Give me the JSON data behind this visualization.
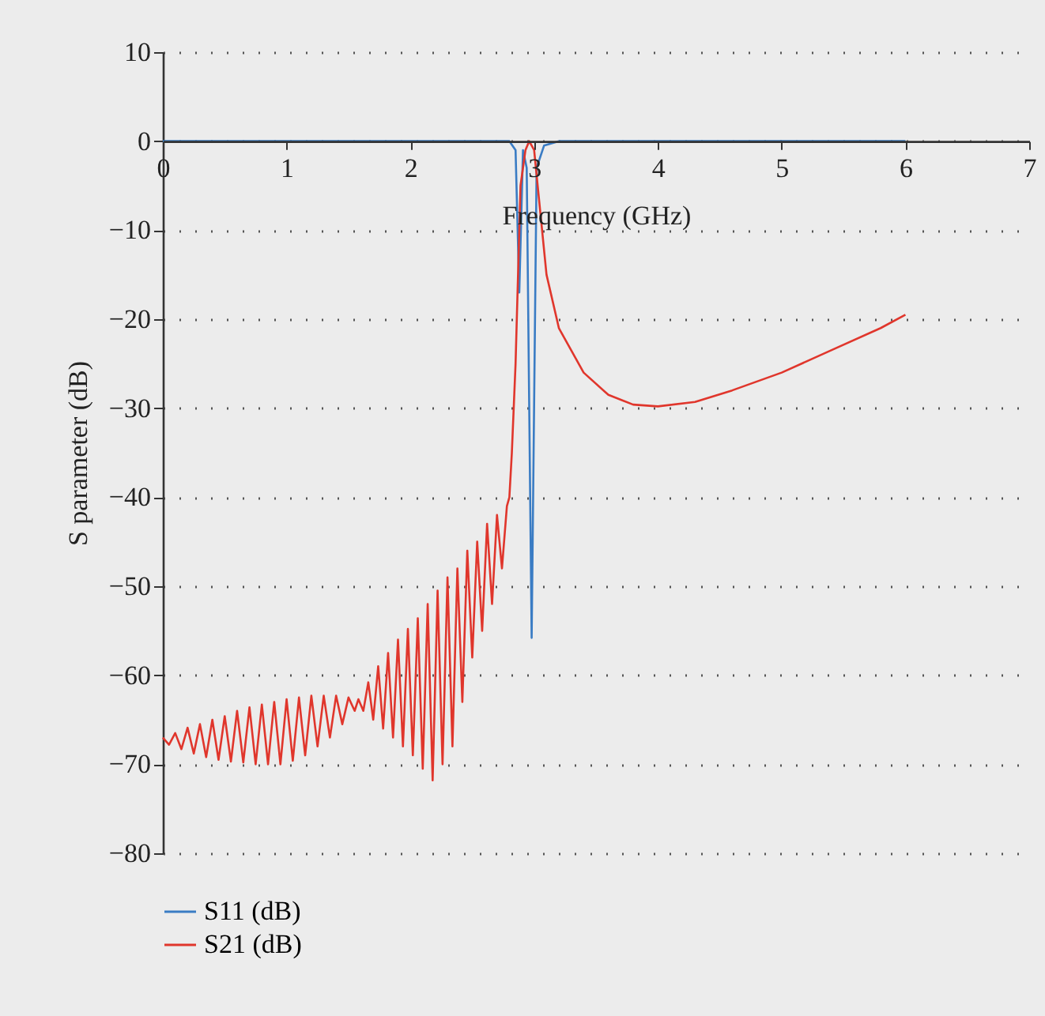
{
  "chart_data": {
    "type": "line",
    "xlabel": "Frequency (GHz)",
    "ylabel": "S parameter (dB)",
    "xlim": [
      0,
      7
    ],
    "xticks": [
      0,
      1,
      2,
      3,
      4,
      5,
      6,
      7
    ],
    "ylim": [
      -80,
      10
    ],
    "yticks": [
      -80,
      -70,
      -60,
      -50,
      -40,
      -30,
      -20,
      -10,
      0,
      10
    ],
    "grid": "y",
    "legend": "bottom",
    "line_style": "solid",
    "marker": "none",
    "series": [
      {
        "name": "S11 (dB)",
        "color": "#3a7cc4",
        "x": [
          0,
          2.8,
          2.85,
          2.88,
          2.91,
          2.94,
          2.98,
          3.02,
          3.08,
          3.2,
          6
        ],
        "values": [
          0,
          0,
          -1,
          -17,
          -1,
          -3,
          -55.8,
          -3,
          -0.5,
          0,
          0
        ]
      },
      {
        "name": "S21 (dB)",
        "color": "#e0362c",
        "x": [
          0,
          0.05,
          0.1,
          0.15,
          0.2,
          0.25,
          0.3,
          0.35,
          0.4,
          0.45,
          0.5,
          0.55,
          0.6,
          0.65,
          0.7,
          0.75,
          0.8,
          0.85,
          0.9,
          0.95,
          1.0,
          1.05,
          1.1,
          1.15,
          1.2,
          1.25,
          1.3,
          1.35,
          1.4,
          1.45,
          1.5,
          1.55,
          1.58,
          1.62,
          1.66,
          1.7,
          1.74,
          1.78,
          1.82,
          1.86,
          1.9,
          1.94,
          1.98,
          2.02,
          2.06,
          2.1,
          2.14,
          2.18,
          2.22,
          2.26,
          2.3,
          2.34,
          2.38,
          2.42,
          2.46,
          2.5,
          2.54,
          2.58,
          2.62,
          2.66,
          2.7,
          2.74,
          2.78,
          2.8,
          2.82,
          2.85,
          2.87,
          2.89,
          2.93,
          2.96,
          3.0,
          3.05,
          3.1,
          3.2,
          3.4,
          3.6,
          3.8,
          4.0,
          4.3,
          4.6,
          5.0,
          5.4,
          5.8,
          6.0
        ],
        "values": [
          -67,
          -67.8,
          -66.5,
          -68.3,
          -65.9,
          -68.8,
          -65.5,
          -69.2,
          -65,
          -69.5,
          -64.6,
          -69.7,
          -64,
          -69.8,
          -63.6,
          -70,
          -63.3,
          -70,
          -63,
          -70,
          -62.7,
          -69.6,
          -62.5,
          -69,
          -62.3,
          -68,
          -62.3,
          -67,
          -62.3,
          -65.5,
          -62.5,
          -64,
          -62.7,
          -64,
          -60.8,
          -65,
          -59,
          -66,
          -57.5,
          -67,
          -56,
          -68,
          -54.8,
          -69,
          -53.6,
          -70.5,
          -52,
          -71.8,
          -50.5,
          -70,
          -49,
          -68,
          -48,
          -63,
          -46,
          -58,
          -45,
          -55,
          -43,
          -52,
          -42,
          -48,
          -41,
          -40,
          -35,
          -25,
          -15,
          -5,
          -1,
          0,
          -1,
          -8,
          -15,
          -21,
          -26,
          -28.5,
          -29.6,
          -29.8,
          -29.3,
          -28,
          -26,
          -23.5,
          -21,
          -19.5
        ]
      }
    ]
  }
}
